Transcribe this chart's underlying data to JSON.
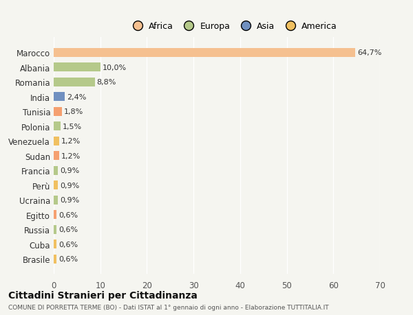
{
  "categories": [
    "Brasile",
    "Cuba",
    "Russia",
    "Egitto",
    "Ucraina",
    "Perù",
    "Francia",
    "Sudan",
    "Venezuela",
    "Polonia",
    "Tunisia",
    "India",
    "Romania",
    "Albania",
    "Marocco"
  ],
  "values": [
    0.6,
    0.6,
    0.6,
    0.6,
    0.9,
    0.9,
    0.9,
    1.2,
    1.2,
    1.5,
    1.8,
    2.4,
    8.8,
    10.0,
    64.7
  ],
  "labels": [
    "0,6%",
    "0,6%",
    "0,6%",
    "0,6%",
    "0,9%",
    "0,9%",
    "0,9%",
    "1,2%",
    "1,2%",
    "1,5%",
    "1,8%",
    "2,4%",
    "8,8%",
    "10,0%",
    "64,7%"
  ],
  "colors": [
    "#f0c060",
    "#f0c060",
    "#b5c98a",
    "#f5a070",
    "#b5c98a",
    "#f0c060",
    "#b5c98a",
    "#f5a070",
    "#f0c060",
    "#b5c98a",
    "#f5a070",
    "#7090c0",
    "#b5c98a",
    "#b5c98a",
    "#f5c090"
  ],
  "legend_labels": [
    "Africa",
    "Europa",
    "Asia",
    "America"
  ],
  "legend_colors": [
    "#f5c090",
    "#b5c98a",
    "#7090c0",
    "#f0c060"
  ],
  "title": "Cittadini Stranieri per Cittadinanza",
  "subtitle": "COMUNE DI PORRETTA TERME (BO) - Dati ISTAT al 1° gennaio di ogni anno - Elaborazione TUTTITALIA.IT",
  "xlim": [
    0,
    70
  ],
  "xticks": [
    0,
    10,
    20,
    30,
    40,
    50,
    60,
    70
  ],
  "bg_color": "#f5f5f0"
}
